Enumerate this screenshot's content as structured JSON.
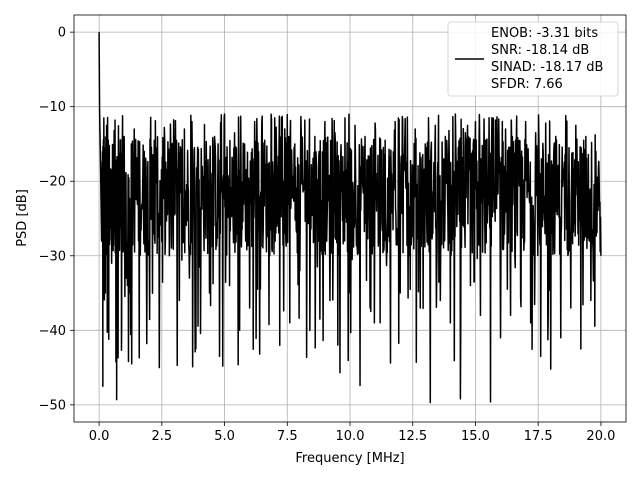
{
  "chart_data": {
    "type": "line",
    "xlabel": "Frequency [MHz]",
    "ylabel": "PSD [dB]",
    "xlim": [
      -1.0,
      21.0
    ],
    "ylim": [
      -52.3,
      2.3
    ],
    "xticks": [
      0.0,
      2.5,
      5.0,
      7.5,
      10.0,
      12.5,
      15.0,
      17.5,
      20.0
    ],
    "xtick_labels": [
      "0.0",
      "2.5",
      "5.0",
      "7.5",
      "10.0",
      "12.5",
      "15.0",
      "17.5",
      "20.0"
    ],
    "yticks": [
      0,
      -10,
      -20,
      -30,
      -40,
      -50
    ],
    "ytick_labels": [
      "0",
      "−10",
      "−20",
      "−30",
      "−40",
      "−50"
    ],
    "grid": true,
    "legend_position": "top-right",
    "series": [
      {
        "color": "#000000",
        "x": [
          0.0,
          0.02,
          0.05,
          0.1,
          0.15,
          0.2,
          0.25,
          0.3,
          0.35,
          0.4,
          0.5,
          0.6,
          0.7,
          0.8,
          0.9,
          1.0,
          1.2,
          1.4,
          1.6,
          1.8,
          2.0,
          2.2,
          2.4,
          2.6,
          2.8,
          3.0,
          3.2,
          3.4,
          3.6,
          3.8,
          4.0,
          4.2,
          4.4,
          4.6,
          4.8,
          5.0,
          5.2,
          5.4,
          5.6,
          5.8,
          6.0,
          6.2,
          6.4,
          6.6,
          6.8,
          7.0,
          7.2,
          7.4,
          7.6,
          7.8,
          8.0,
          8.2,
          8.4,
          8.6,
          8.8,
          9.0,
          9.2,
          9.4,
          9.6,
          9.8,
          10.0,
          10.2,
          10.4,
          10.6,
          10.8,
          11.0,
          11.2,
          11.4,
          11.6,
          11.8,
          12.0,
          12.2,
          12.4,
          12.6,
          12.8,
          13.0,
          13.2,
          13.4,
          13.6,
          13.8,
          14.0,
          14.2,
          14.4,
          14.6,
          14.8,
          15.0,
          15.2,
          15.4,
          15.6,
          15.8,
          16.0,
          16.2,
          16.4,
          16.6,
          16.8,
          17.0,
          17.2,
          17.4,
          17.6,
          17.8,
          18.0,
          18.2,
          18.4,
          18.6,
          18.8,
          19.0,
          19.2,
          19.4,
          19.6,
          19.8,
          20.0
        ],
        "y": [
          0.0,
          -10.5,
          -16.0,
          -28.0,
          -47.5,
          -14.0,
          -35.0,
          -12.5,
          -38.0,
          -20.0,
          -31.0,
          -13.2,
          -49.3,
          -18.0,
          -39.0,
          -14.0,
          -35.0,
          -13.0,
          -43.7,
          -16.0,
          -28.0,
          -14.5,
          -45.0,
          -12.8,
          -30.0,
          -14.0,
          -36.0,
          -13.0,
          -33.0,
          -15.5,
          -31.5,
          -12.4,
          -35.0,
          -14.0,
          -43.5,
          -11.0,
          -34.0,
          -13.5,
          -40.0,
          -15.0,
          -37.0,
          -12.0,
          -43.2,
          -14.5,
          -30.0,
          -11.5,
          -42.0,
          -13.0,
          -39.0,
          -15.0,
          -32.0,
          -11.8,
          -40.0,
          -14.0,
          -38.5,
          -12.0,
          -36.0,
          -13.5,
          -45.7,
          -11.5,
          -35.0,
          -12.5,
          -47.4,
          -14.0,
          -37.0,
          -12.2,
          -39.0,
          -14.5,
          -31.0,
          -12.0,
          -35.0,
          -11.6,
          -34.5,
          -13.0,
          -37.0,
          -15.0,
          -49.7,
          -12.5,
          -36.0,
          -14.0,
          -39.0,
          -11.0,
          -49.2,
          -13.5,
          -34.0,
          -12.0,
          -38.0,
          -14.5,
          -49.6,
          -11.8,
          -41.0,
          -13.0,
          -38.0,
          -14.5,
          -35.5,
          -12.0,
          -39.0,
          -13.5,
          -43.5,
          -12.2,
          -45.2,
          -14.0,
          -41.0,
          -11.2,
          -37.0,
          -12.5,
          -42.5,
          -14.0,
          -36.0,
          -16.0,
          -30.0
        ]
      }
    ],
    "legend": {
      "lines": [
        "ENOB: -3.31 bits",
        "SNR: -18.14 dB",
        "SINAD: -18.17 dB",
        "SFDR: 7.66"
      ]
    }
  }
}
